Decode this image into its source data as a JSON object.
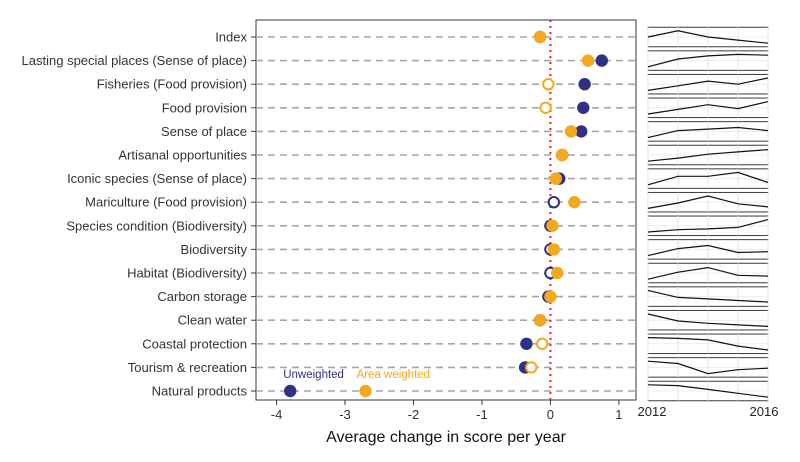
{
  "chart_data": {
    "type": "scatter",
    "xlabel": "Average change in score per year",
    "xlim": [
      -4.3,
      1.25
    ],
    "xticks": [
      -4,
      -3,
      -2,
      -1,
      0,
      1
    ],
    "reference_line_x": 0,
    "reference_line_color": "#e8232a",
    "legend": {
      "placement": "inside-bottom-left",
      "unweighted_label": "Unweighted",
      "area_weighted_label": "Area weighted"
    },
    "colors": {
      "unweighted": "#2e3185",
      "area_weighted": "#f4a81d"
    },
    "categories": [
      "Index",
      "Lasting special places (Sense of place)",
      "Fisheries (Food provision)",
      "Food provision",
      "Sense of place",
      "Artisanal opportunities",
      "Iconic species (Sense of place)",
      "Mariculture (Food provision)",
      "Species condition (Biodiversity)",
      "Biodiversity",
      "Habitat (Biodiversity)",
      "Carbon storage",
      "Clean water",
      "Coastal protection",
      "Tourism & recreation",
      "Natural products"
    ],
    "series": [
      {
        "name": "Unweighted",
        "values": [
          -0.15,
          0.75,
          0.5,
          0.48,
          0.45,
          0.17,
          0.13,
          0.05,
          0.0,
          0.0,
          0.0,
          -0.03,
          -0.15,
          -0.35,
          -0.37,
          -3.8
        ],
        "filled": [
          true,
          true,
          true,
          true,
          true,
          true,
          true,
          false,
          true,
          false,
          false,
          true,
          true,
          true,
          true,
          true
        ]
      },
      {
        "name": "Area weighted",
        "values": [
          -0.15,
          0.55,
          -0.03,
          -0.07,
          0.3,
          0.17,
          0.08,
          0.35,
          0.03,
          0.05,
          0.1,
          0.0,
          -0.15,
          -0.12,
          -0.28,
          -2.7
        ],
        "filled": [
          true,
          true,
          false,
          false,
          true,
          true,
          true,
          true,
          true,
          true,
          true,
          true,
          true,
          false,
          false,
          true
        ]
      }
    ],
    "sparklines": {
      "xlim": [
        2012,
        2016
      ],
      "x_tick_labels": [
        "2012",
        "2016"
      ],
      "x": [
        2012,
        2013,
        2014,
        2015,
        2016
      ],
      "rows": [
        [
          0.5,
          0.9,
          0.5,
          0.3,
          0.1
        ],
        [
          0.1,
          0.6,
          0.8,
          0.9,
          0.85
        ],
        [
          0.1,
          0.4,
          0.7,
          0.5,
          0.9
        ],
        [
          0.1,
          0.4,
          0.7,
          0.45,
          0.9
        ],
        [
          0.1,
          0.55,
          0.65,
          0.75,
          0.55
        ],
        [
          0.1,
          0.3,
          0.55,
          0.7,
          0.85
        ],
        [
          0.1,
          0.65,
          0.65,
          0.9,
          0.25
        ],
        [
          0.1,
          0.45,
          0.9,
          0.4,
          0.2
        ],
        [
          0.1,
          0.25,
          0.3,
          0.4,
          0.9
        ],
        [
          0.1,
          0.55,
          0.75,
          0.3,
          0.35
        ],
        [
          0.1,
          0.55,
          0.85,
          0.35,
          0.3
        ],
        [
          0.9,
          0.45,
          0.35,
          0.25,
          0.15
        ],
        [
          0.9,
          0.45,
          0.3,
          0.2,
          0.1
        ],
        [
          0.9,
          0.85,
          0.75,
          0.35,
          0.1
        ],
        [
          0.9,
          0.75,
          0.1,
          0.35,
          0.45
        ],
        [
          0.9,
          0.85,
          0.6,
          0.35,
          0.1
        ]
      ]
    }
  }
}
